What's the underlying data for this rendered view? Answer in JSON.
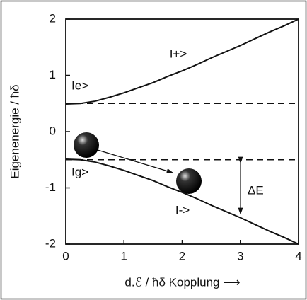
{
  "chart_data": {
    "type": "line",
    "xlabel": "d.ℰ / ħδ  Kopplung ⟶",
    "ylabel": "Eigenenergie / ħδ",
    "x": [
      0,
      0.25,
      0.5,
      0.75,
      1,
      1.25,
      1.5,
      1.75,
      2,
      2.25,
      2.5,
      2.75,
      3,
      3.25,
      3.5,
      3.75,
      4
    ],
    "series": [
      {
        "name": "I+>",
        "color": "#111111",
        "values": [
          0.49,
          0.5,
          0.54,
          0.61,
          0.69,
          0.78,
          0.87,
          0.98,
          1.08,
          1.19,
          1.31,
          1.42,
          1.53,
          1.65,
          1.77,
          1.88,
          2.0
        ]
      },
      {
        "name": "I->",
        "color": "#111111",
        "values": [
          -0.49,
          -0.5,
          -0.54,
          -0.61,
          -0.69,
          -0.78,
          -0.87,
          -0.98,
          -1.08,
          -1.19,
          -1.31,
          -1.42,
          -1.53,
          -1.65,
          -1.77,
          -1.88,
          -2.0
        ]
      }
    ],
    "dashed_levels": [
      0.5,
      -0.5
    ],
    "annotations": [
      "Ie>",
      "Ig>",
      "ΔE"
    ],
    "xlim": [
      0,
      4
    ],
    "ylim": [
      -2,
      2
    ],
    "xticks": [
      0,
      1,
      2,
      3,
      4
    ],
    "yticks": [
      -2,
      -1,
      0,
      1,
      2
    ],
    "grid": false
  }
}
